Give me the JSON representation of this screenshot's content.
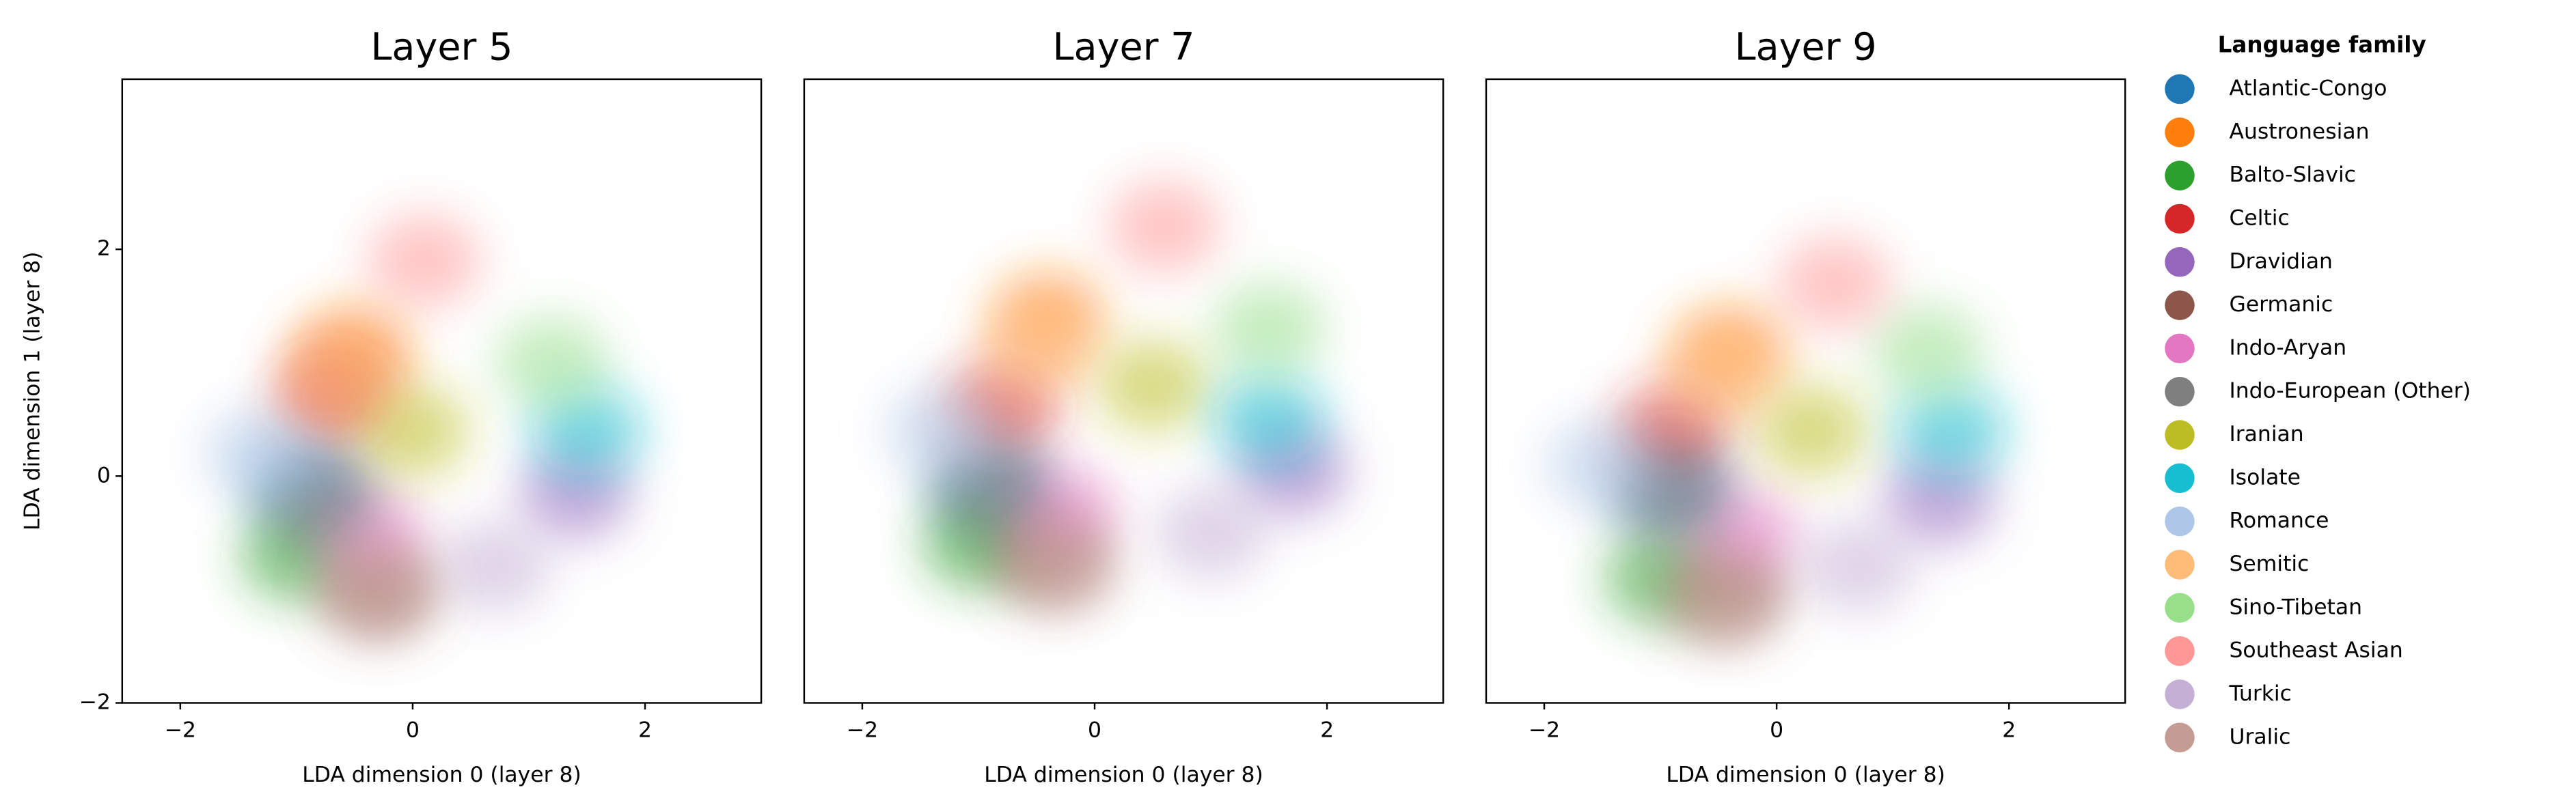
{
  "chart_data": [
    {
      "type": "scatter",
      "title": "Layer 5",
      "xlabel": "LDA dimension 0 (layer 8)",
      "ylabel": "LDA dimension 1 (layer 8)",
      "xlim": [
        -2.5,
        3.0
      ],
      "ylim": [
        -2,
        3.5
      ],
      "xticks": [
        {
          "value": -2,
          "label": "−2"
        },
        0,
        2
      ],
      "yticks": [
        {
          "value": -2,
          "label": "−2"
        },
        0,
        2
      ],
      "legend_title": "Language family",
      "series": [
        {
          "name": "Atlantic-Congo",
          "color": "#1f77b4",
          "x": [
            -0.9
          ],
          "values": [
            -0.1
          ]
        },
        {
          "name": "Austronesian",
          "color": "#ff7f0e",
          "x": [
            -0.5
          ],
          "values": [
            1.1
          ]
        },
        {
          "name": "Balto-Slavic",
          "color": "#2ca02c",
          "x": [
            -1.0
          ],
          "values": [
            -0.7
          ]
        },
        {
          "name": "Celtic",
          "color": "#d62728",
          "x": [
            -0.7
          ],
          "values": [
            0.7
          ]
        },
        {
          "name": "Dravidian",
          "color": "#9467bd",
          "x": [
            1.4
          ],
          "values": [
            -0.15
          ]
        },
        {
          "name": "Germanic",
          "color": "#8c564b",
          "x": [
            -0.3
          ],
          "values": [
            -1.0
          ]
        },
        {
          "name": "Indo-Aryan",
          "color": "#e377c2",
          "x": [
            -0.4
          ],
          "values": [
            -0.5
          ]
        },
        {
          "name": "Indo-European (Other)",
          "color": "#7f7f7f",
          "x": [
            -0.8
          ],
          "values": [
            -0.2
          ]
        },
        {
          "name": "Iranian",
          "color": "#bcbd22",
          "x": [
            0.0
          ],
          "values": [
            0.4
          ]
        },
        {
          "name": "Isolate",
          "color": "#17becf",
          "x": [
            1.5
          ],
          "values": [
            0.4
          ]
        },
        {
          "name": "Romance",
          "color": "#aec7e8",
          "x": [
            -1.3
          ],
          "values": [
            0.2
          ]
        },
        {
          "name": "Semitic",
          "color": "#ffbb78",
          "x": [
            -0.6
          ],
          "values": [
            0.9
          ]
        },
        {
          "name": "Sino-Tibetan",
          "color": "#98df8a",
          "x": [
            1.2
          ],
          "values": [
            1.0
          ]
        },
        {
          "name": "Southeast Asian",
          "color": "#ff9896",
          "x": [
            0.1
          ],
          "values": [
            1.9
          ]
        },
        {
          "name": "Turkic",
          "color": "#c5b0d5",
          "x": [
            0.7
          ],
          "values": [
            -0.8
          ]
        },
        {
          "name": "Uralic",
          "color": "#c49c94",
          "x": [
            -0.3
          ],
          "values": [
            -1.0
          ]
        }
      ]
    },
    {
      "type": "scatter",
      "title": "Layer 7",
      "xlabel": "LDA dimension 0 (layer 8)",
      "xlim": [
        -2.5,
        3.0
      ],
      "ylim": [
        -2,
        3.5
      ],
      "xticks": [
        {
          "value": -2,
          "label": "−2"
        },
        0,
        2
      ],
      "series": [
        {
          "x": [
            -0.9
          ],
          "values": [
            -0.1
          ]
        },
        {
          "x": [
            -0.4
          ],
          "values": [
            1.4
          ]
        },
        {
          "x": [
            -1.0
          ],
          "values": [
            -0.6
          ]
        },
        {
          "x": [
            -0.8
          ],
          "values": [
            0.6
          ]
        },
        {
          "x": [
            1.7
          ],
          "values": [
            0.05
          ]
        },
        {
          "x": [
            -0.4
          ],
          "values": [
            -0.7
          ]
        },
        {
          "x": [
            -0.3
          ],
          "values": [
            -0.3
          ]
        },
        {
          "x": [
            -0.9
          ],
          "values": [
            -0.1
          ]
        },
        {
          "x": [
            0.5
          ],
          "values": [
            0.8
          ]
        },
        {
          "x": [
            1.5
          ],
          "values": [
            0.5
          ]
        },
        {
          "x": [
            -1.3
          ],
          "values": [
            0.4
          ]
        },
        {
          "x": [
            -0.5
          ],
          "values": [
            1.1
          ]
        },
        {
          "x": [
            1.5
          ],
          "values": [
            1.3
          ]
        },
        {
          "x": [
            0.6
          ],
          "values": [
            2.2
          ]
        },
        {
          "x": [
            1.0
          ],
          "values": [
            -0.5
          ]
        },
        {
          "x": [
            -0.3
          ],
          "values": [
            -0.8
          ]
        }
      ]
    },
    {
      "type": "scatter",
      "title": "Layer 9",
      "xlabel": "LDA dimension 0 (layer 8)",
      "xlim": [
        -2.5,
        3.0
      ],
      "ylim": [
        -2,
        3.5
      ],
      "xticks": [
        {
          "value": -2,
          "label": "−2"
        },
        0,
        2
      ],
      "series": [
        {
          "x": [
            -0.9
          ],
          "values": [
            -0.1
          ]
        },
        {
          "x": [
            -0.4
          ],
          "values": [
            1.1
          ]
        },
        {
          "x": [
            -1.0
          ],
          "values": [
            -0.9
          ]
        },
        {
          "x": [
            -0.9
          ],
          "values": [
            0.4
          ]
        },
        {
          "x": [
            1.4
          ],
          "values": [
            -0.2
          ]
        },
        {
          "x": [
            -0.4
          ],
          "values": [
            -1.0
          ]
        },
        {
          "x": [
            -0.3
          ],
          "values": [
            -0.5
          ]
        },
        {
          "x": [
            -0.9
          ],
          "values": [
            -0.2
          ]
        },
        {
          "x": [
            0.3
          ],
          "values": [
            0.4
          ]
        },
        {
          "x": [
            1.5
          ],
          "values": [
            0.4
          ]
        },
        {
          "x": [
            -1.5
          ],
          "values": [
            0.1
          ]
        },
        {
          "x": [
            -0.5
          ],
          "values": [
            0.9
          ]
        },
        {
          "x": [
            1.3
          ],
          "values": [
            1.1
          ]
        },
        {
          "x": [
            0.5
          ],
          "values": [
            1.7
          ]
        },
        {
          "x": [
            0.7
          ],
          "values": [
            -0.8
          ]
        },
        {
          "x": [
            -0.5
          ],
          "values": [
            -1.1
          ]
        }
      ]
    }
  ]
}
